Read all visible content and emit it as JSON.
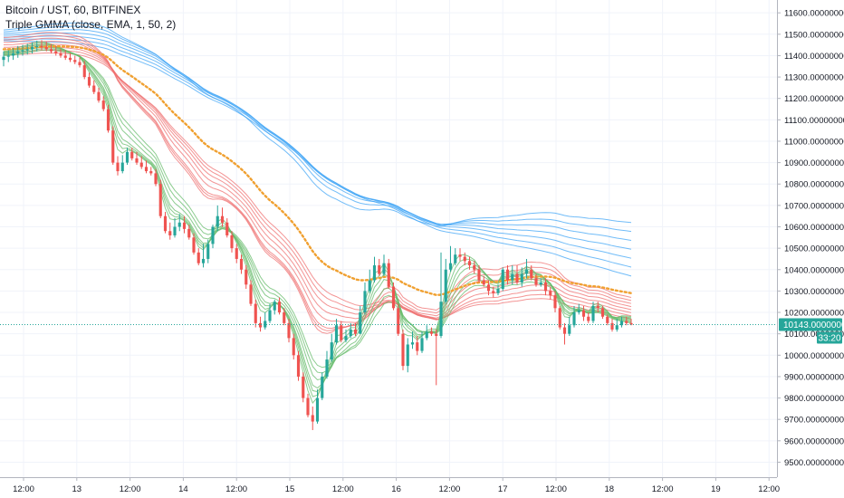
{
  "legend": {
    "symbol_line": "Bitcoin / UST, 60, BITFINEX",
    "indicator_line": "Triple GMMA (close, EMA, 1, 50, 2)"
  },
  "colors": {
    "background": "#ffffff",
    "grid": "#f0f3fa",
    "axis_text": "#131722",
    "candle_up": "#26a69a",
    "candle_down": "#ef5350",
    "fast_band": "#66bb6a",
    "medium_band": "#ef7070",
    "slow_band": "#42a5f5",
    "mid_ema": "#f0a030",
    "last_price": "#26a69a"
  },
  "price_tag": {
    "value": "10143.00000000",
    "countdown": "33:20"
  },
  "chart_data": {
    "type": "candlestick",
    "title": "",
    "xlabel": "",
    "ylabel": "",
    "y_range": [
      9430,
      11660
    ],
    "y_ticks": [
      {
        "value": 9500,
        "label": "9500.00000000"
      },
      {
        "value": 9600,
        "label": "9600.00000000"
      },
      {
        "value": 9700,
        "label": "9700.00000000"
      },
      {
        "value": 9800,
        "label": "9800.00000000"
      },
      {
        "value": 9900,
        "label": "9900.00000000"
      },
      {
        "value": 10000,
        "label": "10000.00000000"
      },
      {
        "value": 10100,
        "label": "10100.00000000"
      },
      {
        "value": 10200,
        "label": "10200.00000000"
      },
      {
        "value": 10300,
        "label": "10300.00000000"
      },
      {
        "value": 10400,
        "label": "10400.00000000"
      },
      {
        "value": 10500,
        "label": "10500.00000000"
      },
      {
        "value": 10600,
        "label": "10600.00000000"
      },
      {
        "value": 10700,
        "label": "10700.00000000"
      },
      {
        "value": 10800,
        "label": "10800.00000000"
      },
      {
        "value": 10900,
        "label": "10900.00000000"
      },
      {
        "value": 11000,
        "label": "11000.00000000"
      },
      {
        "value": 11100,
        "label": "11100.00000000"
      },
      {
        "value": 11200,
        "label": "11200.00000000"
      },
      {
        "value": 11300,
        "label": "11300.00000000"
      },
      {
        "value": 11400,
        "label": "11400.00000000"
      },
      {
        "value": 11500,
        "label": "11500.00000000"
      },
      {
        "value": 11600,
        "label": "11600.00000000"
      }
    ],
    "x_ticks": [
      "12:00",
      "13",
      "12:00",
      "14",
      "12:00",
      "15",
      "12:00",
      "16",
      "12:00",
      "17",
      "12:00",
      "18",
      "12:00",
      "19",
      "12:00"
    ],
    "grid": true,
    "last_price": 10143,
    "candles": {
      "o": [
        11380,
        11395,
        11400,
        11410,
        11420,
        11425,
        11430,
        11440,
        11445,
        11440,
        11430,
        11420,
        11410,
        11400,
        11390,
        11380,
        11370,
        11355,
        11300,
        11260,
        11230,
        11190,
        11150,
        11050,
        10900,
        10860,
        10900,
        10950,
        10920,
        10900,
        10880,
        10860,
        10850,
        10800,
        10650,
        10580,
        10560,
        10600,
        10620,
        10590,
        10550,
        10480,
        10430,
        10450,
        10520,
        10600,
        10650,
        10620,
        10560,
        10500,
        10450,
        10400,
        10330,
        10240,
        10150,
        10130,
        10160,
        10210,
        10250,
        10200,
        10150,
        10080,
        10000,
        9900,
        9800,
        9720,
        9690,
        9800,
        9900,
        9980,
        10060,
        10140,
        10070,
        10090,
        10120,
        10100,
        10200,
        10300,
        10350,
        10420,
        10380,
        10430,
        10320,
        10220,
        10100,
        9950,
        10050,
        10060,
        10020,
        10080,
        10110,
        10100,
        10090,
        10250,
        10400,
        10430,
        10470,
        10460,
        10440,
        10420,
        10400,
        10350,
        10330,
        10300,
        10290,
        10310,
        10400,
        10350,
        10380,
        10340,
        10380,
        10400,
        10360,
        10330,
        10340,
        10300,
        10280,
        10220,
        10130,
        10100,
        10140,
        10200,
        10210,
        10180,
        10160,
        10230,
        10220,
        10180,
        10150,
        10120,
        10140,
        10160,
        10150
      ],
      "h": [
        11420,
        11425,
        11435,
        11445,
        11450,
        11455,
        11462,
        11470,
        11472,
        11465,
        11455,
        11445,
        11432,
        11425,
        11412,
        11400,
        11392,
        11375,
        11320,
        11285,
        11250,
        11210,
        11170,
        11070,
        10930,
        10935,
        10970,
        10970,
        10950,
        10930,
        10910,
        10880,
        10870,
        10820,
        10670,
        10620,
        10640,
        10660,
        10650,
        10610,
        10570,
        10500,
        10520,
        10540,
        10610,
        10700,
        10690,
        10640,
        10580,
        10520,
        10470,
        10420,
        10350,
        10260,
        10180,
        10200,
        10240,
        10260,
        10270,
        10220,
        10170,
        10100,
        10020,
        9920,
        9820,
        9760,
        9840,
        9920,
        10020,
        10100,
        10170,
        10160,
        10120,
        10150,
        10150,
        10230,
        10340,
        10400,
        10460,
        10450,
        10470,
        10450,
        10340,
        10240,
        10120,
        10080,
        10110,
        10090,
        10110,
        10140,
        10130,
        10120,
        10480,
        10450,
        10510,
        10500,
        10500,
        10480,
        10460,
        10440,
        10420,
        10370,
        10350,
        10320,
        10330,
        10410,
        10420,
        10420,
        10420,
        10410,
        10450,
        10420,
        10380,
        10360,
        10360,
        10320,
        10300,
        10230,
        10150,
        10180,
        10230,
        10240,
        10230,
        10200,
        10250,
        10250,
        10230,
        10190,
        10170,
        10170,
        10180,
        10180,
        10170
      ],
      "l": [
        11350,
        11370,
        11380,
        11390,
        11400,
        11405,
        11410,
        11420,
        11425,
        11420,
        11410,
        11400,
        11390,
        11380,
        11370,
        11360,
        11345,
        11290,
        11250,
        11220,
        11180,
        11140,
        11040,
        10890,
        10840,
        10850,
        10890,
        10910,
        10890,
        10870,
        10850,
        10840,
        10790,
        10640,
        10570,
        10540,
        10550,
        10580,
        10570,
        10540,
        10470,
        10420,
        10410,
        10430,
        10500,
        10580,
        10600,
        10550,
        10480,
        10430,
        10380,
        10310,
        10230,
        10130,
        10110,
        10120,
        10150,
        10190,
        10190,
        10140,
        10060,
        9980,
        9880,
        9780,
        9710,
        9650,
        9680,
        9790,
        9890,
        9970,
        10050,
        10060,
        10060,
        10080,
        10090,
        10100,
        10190,
        10290,
        10340,
        10370,
        10370,
        10310,
        10210,
        10090,
        9930,
        9920,
        10030,
        10000,
        10010,
        10070,
        10090,
        9860,
        10080,
        10240,
        10390,
        10420,
        10440,
        10420,
        10400,
        10380,
        10340,
        10320,
        10280,
        10270,
        10280,
        10300,
        10330,
        10330,
        10330,
        10320,
        10360,
        10350,
        10320,
        10320,
        10280,
        10260,
        10200,
        10120,
        10050,
        10090,
        10130,
        10190,
        10160,
        10150,
        10150,
        10200,
        10170,
        10140,
        10110,
        10110,
        10130,
        10140,
        10140
      ],
      "c": [
        11395,
        11400,
        11410,
        11420,
        11425,
        11430,
        11440,
        11445,
        11440,
        11430,
        11420,
        11410,
        11400,
        11390,
        11380,
        11370,
        11355,
        11300,
        11260,
        11230,
        11190,
        11150,
        11050,
        10900,
        10860,
        10900,
        10950,
        10920,
        10900,
        10880,
        10860,
        10850,
        10800,
        10650,
        10580,
        10560,
        10600,
        10620,
        10590,
        10550,
        10480,
        10430,
        10450,
        10520,
        10600,
        10650,
        10620,
        10560,
        10500,
        10450,
        10400,
        10330,
        10240,
        10150,
        10130,
        10160,
        10210,
        10250,
        10200,
        10150,
        10080,
        10000,
        9900,
        9800,
        9720,
        9690,
        9800,
        9900,
        9980,
        10060,
        10140,
        10070,
        10090,
        10120,
        10100,
        10200,
        10300,
        10350,
        10420,
        10380,
        10430,
        10320,
        10220,
        10100,
        9950,
        10050,
        10060,
        10020,
        10080,
        10110,
        10100,
        10090,
        10250,
        10400,
        10430,
        10470,
        10460,
        10440,
        10420,
        10400,
        10350,
        10330,
        10300,
        10290,
        10310,
        10400,
        10350,
        10380,
        10340,
        10380,
        10400,
        10360,
        10330,
        10340,
        10300,
        10280,
        10220,
        10130,
        10100,
        10140,
        10200,
        10210,
        10180,
        10160,
        10230,
        10220,
        10180,
        10150,
        10120,
        10140,
        10160,
        10150,
        10143
      ]
    },
    "bands": {
      "fast_start": [
        11420,
        11400
      ],
      "fast_end": [
        10180,
        10150
      ],
      "medium_start": [
        11485,
        11405
      ],
      "medium_end": [
        10270,
        10170
      ],
      "slow_start": [
        11520,
        11470
      ],
      "slow_end": [
        10620,
        10370
      ],
      "mid_ema_start": 11430,
      "mid_ema_end": 10290
    }
  }
}
